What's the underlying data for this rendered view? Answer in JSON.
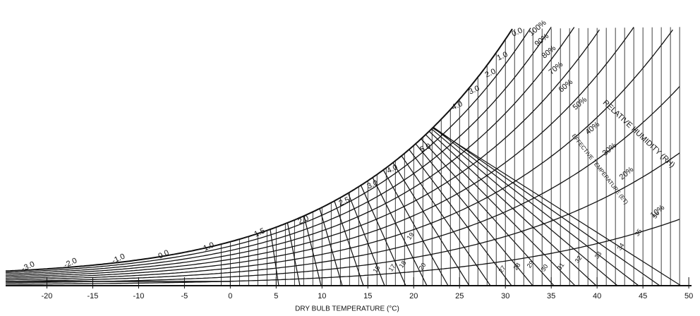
{
  "chart_data": {
    "type": "psychrometric",
    "xlabel": "DRY BULB TEMPERATURE (°C)",
    "xlim": [
      -24.5,
      50.3
    ],
    "xticks": [
      -20,
      -15,
      -10,
      -5,
      0,
      5,
      10,
      15,
      20,
      25,
      30,
      35,
      40,
      45,
      50
    ],
    "rh_title": "RELATIVE HUMIDITY (RH)",
    "et_title": "EFFECTIVE TEMPERATURE (ET)",
    "rh_curves": [
      {
        "value": 100,
        "label": "100%"
      },
      {
        "value": 90,
        "label": "90%"
      },
      {
        "value": 80,
        "label": "80%"
      },
      {
        "value": 70,
        "label": "70%"
      },
      {
        "value": 60,
        "label": "60%"
      },
      {
        "value": 50,
        "label": "50%"
      },
      {
        "value": 40,
        "label": "40%"
      },
      {
        "value": 30,
        "label": "30%"
      },
      {
        "value": 20,
        "label": "20%"
      },
      {
        "value": 10,
        "label": "10%"
      }
    ],
    "curve_labels": [
      "-3.0",
      "-2.0",
      "-1.0",
      "0.0",
      "1.0",
      "1.5",
      "2.0",
      "2.5",
      "3.0",
      "4.0",
      "5.0",
      "4.0",
      "3.0",
      "2.0",
      "1.0",
      "0.0"
    ],
    "et_labels": [
      "15",
      "17",
      "18",
      "19",
      "20",
      "27",
      "28",
      "29",
      "30",
      "31",
      "32",
      "33",
      "34",
      "35",
      "36"
    ]
  }
}
